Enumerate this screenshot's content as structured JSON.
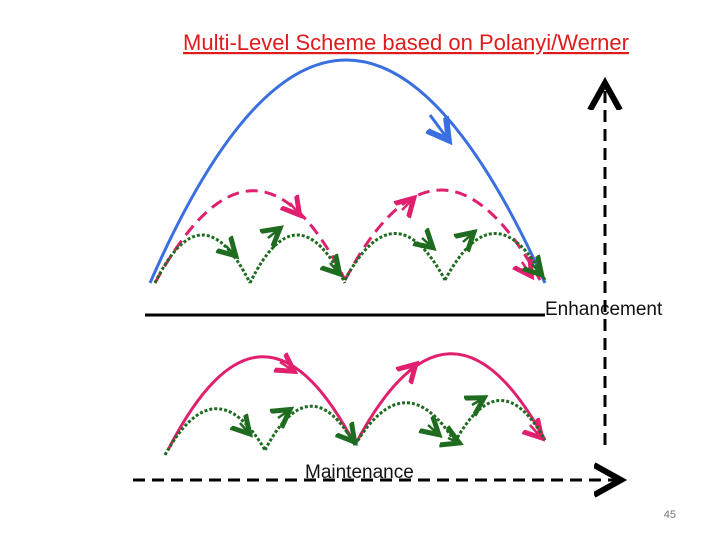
{
  "header": {
    "title": "Multi-Level Scheme based on Polanyi/Werner"
  },
  "labels": {
    "enhancement": "Enhancement",
    "maintenance": "Maintenance"
  },
  "footer": {
    "page_number": "45"
  }
}
